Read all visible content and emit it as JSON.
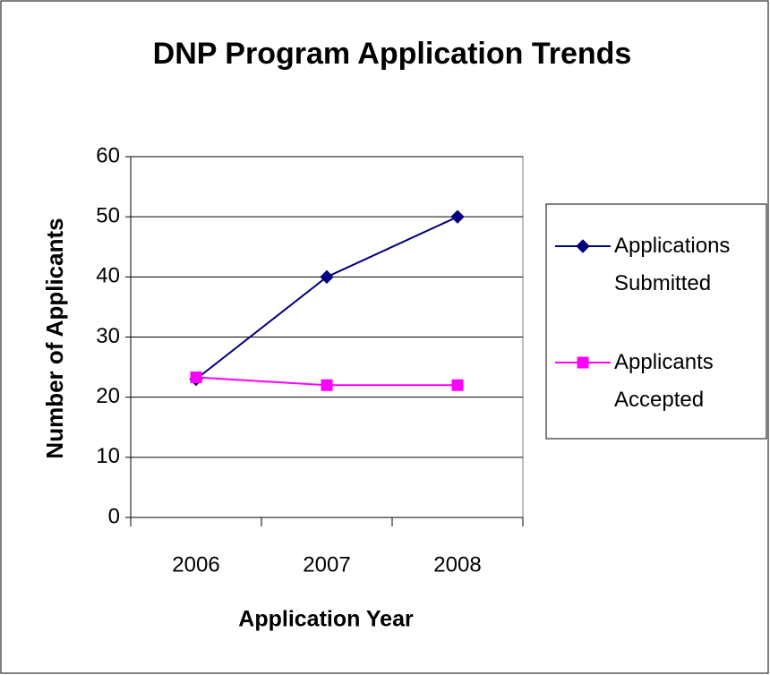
{
  "chart_data": {
    "type": "line",
    "title": "DNP Program Application Trends",
    "x_label": "Application Year",
    "y_label": "Number of Applicants",
    "categories": [
      "2006",
      "2007",
      "2008"
    ],
    "series": [
      {
        "name": "Applications Submitted",
        "color": "#000080",
        "marker": "diamond",
        "values": [
          23,
          40,
          50
        ]
      },
      {
        "name": "Applicants Accepted",
        "color": "#ff00ff",
        "marker": "square",
        "values": [
          23.3,
          22,
          22
        ]
      }
    ],
    "ylim": [
      0,
      60
    ],
    "yticks": [
      0,
      10,
      20,
      30,
      40,
      50,
      60
    ],
    "grid": true,
    "legend": "right"
  }
}
